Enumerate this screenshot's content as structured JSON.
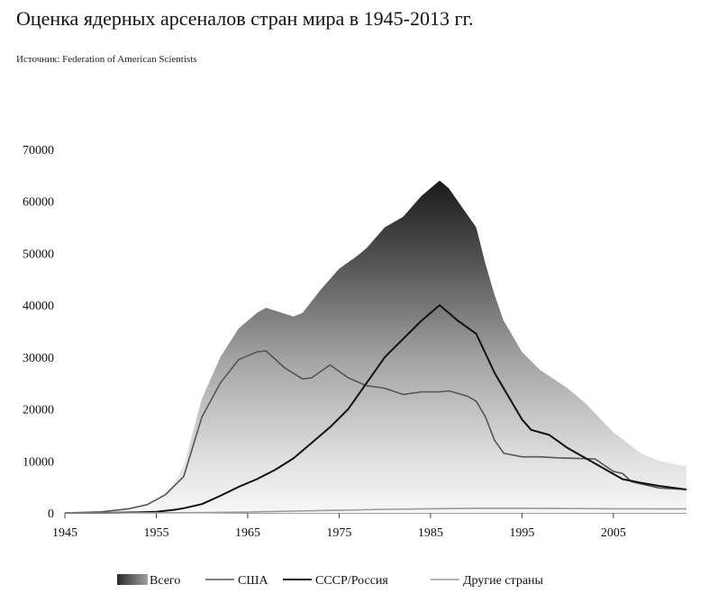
{
  "title": "Оценка ядерных арсеналов стран мира в 1945-2013   гг.",
  "source": "Источник: Federation of American Scientists",
  "chart_data": {
    "type": "area",
    "title": "Оценка ядерных арсеналов стран мира в 1945-2013   гг.",
    "xlabel": "",
    "ylabel": "",
    "xlim": [
      1945,
      2013
    ],
    "ylim": [
      0,
      70000
    ],
    "x_ticks": [
      "1945",
      "1955",
      "1965",
      "1975",
      "1985",
      "1995",
      "2005"
    ],
    "y_ticks": [
      "0",
      "10000",
      "20000",
      "30000",
      "40000",
      "50000",
      "60000",
      "70000"
    ],
    "grid": false,
    "legend_position": "bottom",
    "series": [
      {
        "name": "Всего",
        "style": "area",
        "color": "#3a3a3a",
        "x": [
          1945,
          1950,
          1953,
          1955,
          1957,
          1958,
          1960,
          1962,
          1964,
          1966,
          1967,
          1970,
          1971,
          1973,
          1975,
          1977,
          1978,
          1980,
          1982,
          1984,
          1986,
          1987,
          1988,
          1990,
          1991,
          1992,
          1993,
          1995,
          1997,
          2000,
          2002,
          2005,
          2008,
          2010,
          2013
        ],
        "y": [
          0,
          400,
          1000,
          2500,
          6000,
          9000,
          22000,
          30000,
          35500,
          38500,
          39500,
          37800,
          38500,
          43000,
          47000,
          49500,
          51000,
          55000,
          57000,
          61000,
          64000,
          62500,
          60000,
          55000,
          48000,
          42000,
          37000,
          31000,
          27500,
          24000,
          21000,
          15500,
          11500,
          10000,
          9000
        ]
      },
      {
        "name": "США",
        "style": "line",
        "color": "#555555",
        "x": [
          1945,
          1949,
          1952,
          1954,
          1956,
          1958,
          1960,
          1962,
          1964,
          1966,
          1967,
          1969,
          1971,
          1972,
          1974,
          1976,
          1978,
          1980,
          1982,
          1984,
          1986,
          1987,
          1989,
          1990,
          1991,
          1992,
          1993,
          1995,
          1997,
          1999,
          2001,
          2003,
          2005,
          2006,
          2007,
          2010,
          2013
        ],
        "y": [
          0,
          200,
          800,
          1600,
          3500,
          7000,
          18500,
          25000,
          29500,
          31000,
          31200,
          28000,
          25800,
          26000,
          28500,
          26000,
          24500,
          24000,
          22800,
          23300,
          23300,
          23500,
          22500,
          21500,
          18500,
          14000,
          11500,
          10800,
          10800,
          10600,
          10500,
          10400,
          8000,
          7600,
          6000,
          4800,
          4500
        ]
      },
      {
        "name": "СССР/Россия",
        "style": "line",
        "color": "#111111",
        "x": [
          1945,
          1949,
          1953,
          1955,
          1957,
          1958,
          1960,
          1962,
          1964,
          1966,
          1968,
          1970,
          1972,
          1974,
          1976,
          1978,
          1980,
          1982,
          1984,
          1986,
          1987,
          1988,
          1990,
          1992,
          1994,
          1995,
          1996,
          1998,
          2000,
          2002,
          2004,
          2006,
          2008,
          2010,
          2013
        ],
        "y": [
          0,
          0,
          100,
          200,
          600,
          900,
          1700,
          3300,
          5000,
          6500,
          8300,
          10500,
          13500,
          16500,
          20000,
          25000,
          30000,
          33500,
          37000,
          40000,
          38500,
          37000,
          34500,
          27000,
          21000,
          18000,
          16000,
          15000,
          12500,
          10500,
          8500,
          6500,
          5800,
          5200,
          4500
        ]
      },
      {
        "name": "Другие страны",
        "style": "line",
        "color": "#9a9a9a",
        "x": [
          1945,
          1952,
          1955,
          1960,
          1965,
          1970,
          1975,
          1980,
          1985,
          1990,
          1995,
          2000,
          2005,
          2010,
          2013
        ],
        "y": [
          0,
          0,
          10,
          60,
          150,
          350,
          500,
          700,
          800,
          900,
          900,
          850,
          800,
          780,
          780
        ]
      }
    ]
  },
  "legend": [
    {
      "label": "Всего",
      "kind": "swatch"
    },
    {
      "label": "США",
      "kind": "line"
    },
    {
      "label": "СССР/Россия",
      "kind": "line"
    },
    {
      "label": "Другие страны",
      "kind": "line"
    }
  ]
}
